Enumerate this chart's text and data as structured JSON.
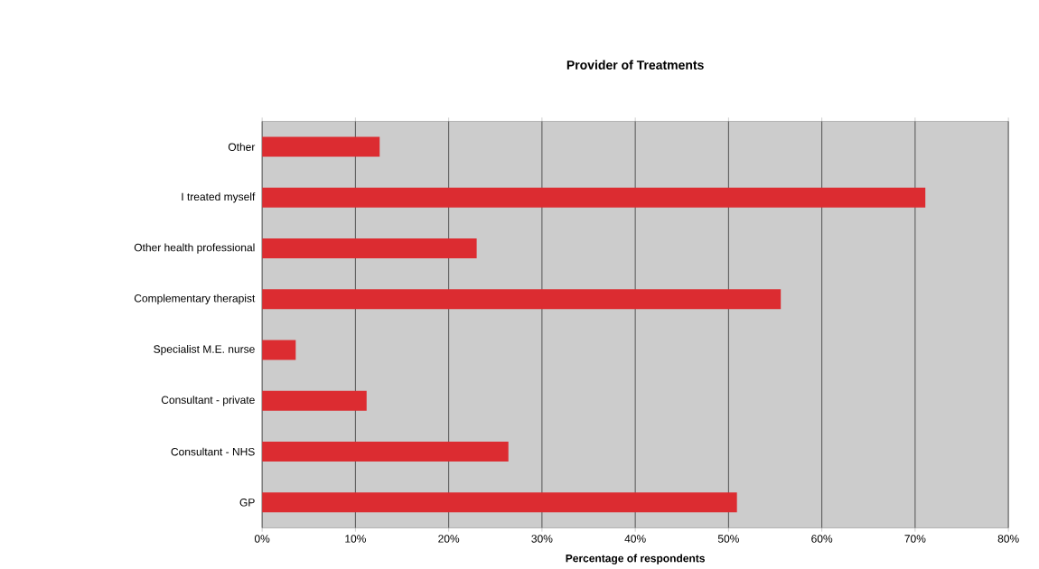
{
  "chart_data": {
    "type": "bar",
    "orientation": "horizontal",
    "title": "Provider of Treatments",
    "xlabel": "Percentage of respondents",
    "categories": [
      "Other",
      "I treated myself",
      "Other health professional",
      "Complementary therapist",
      "Specialist M.E. nurse",
      "Consultant - private",
      "Consultant - NHS",
      "GP"
    ],
    "values": [
      12.6,
      71.1,
      23.0,
      55.6,
      3.6,
      11.2,
      26.4,
      50.9
    ],
    "color": "#dc2c31",
    "xlim": [
      0,
      80
    ],
    "xticks": [
      {
        "value": 0,
        "label": "0%"
      },
      {
        "value": 10,
        "label": "10%"
      },
      {
        "value": 20,
        "label": "20%"
      },
      {
        "value": 30,
        "label": "30%"
      },
      {
        "value": 40,
        "label": "40%"
      },
      {
        "value": 50,
        "label": "50%"
      },
      {
        "value": 60,
        "label": "60%"
      },
      {
        "value": 70,
        "label": "70%"
      },
      {
        "value": 80,
        "label": "80%"
      }
    ],
    "grid": "x"
  }
}
